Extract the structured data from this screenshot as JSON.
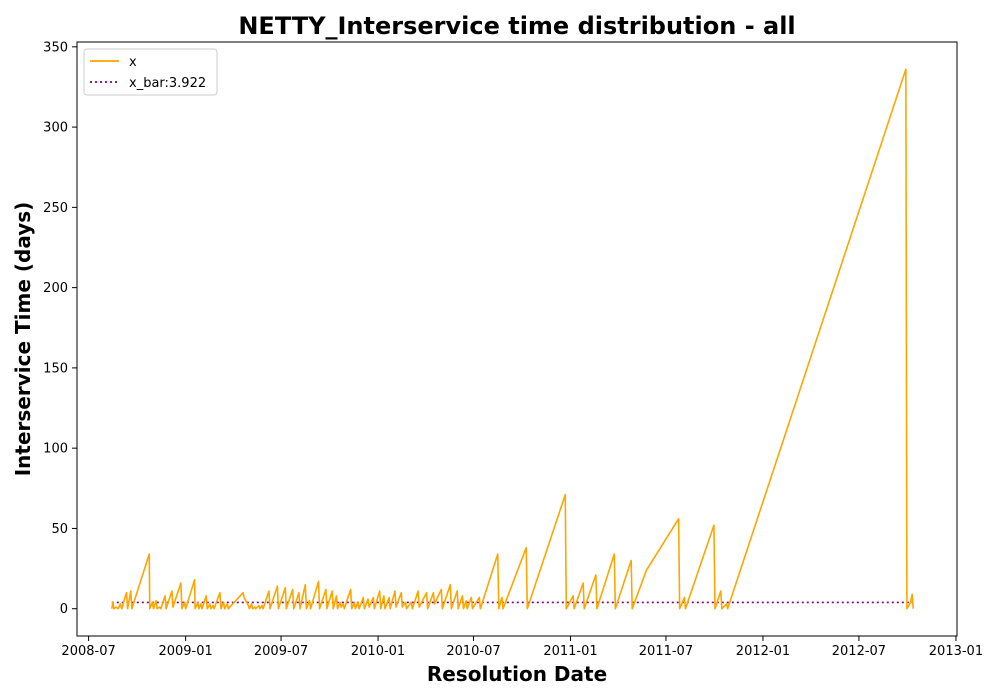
{
  "chart_data": {
    "type": "line",
    "title": "NETTY_Interservice time distribution - all",
    "xlabel": "Resolution Date",
    "ylabel": "Interservice Time (days)",
    "x_axis_type": "date",
    "xlim": [
      "2008-06-09",
      "2013-01-03"
    ],
    "ylim": [
      -17,
      353
    ],
    "x_ticks": [
      "2008-07",
      "2009-01",
      "2009-07",
      "2010-01",
      "2010-07",
      "2011-01",
      "2011-07",
      "2012-01",
      "2012-07",
      "2013-01"
    ],
    "y_ticks": [
      0,
      50,
      100,
      150,
      200,
      250,
      300,
      350
    ],
    "grid": false,
    "legend_position": "upper-left",
    "colors": {
      "x": "#ffa500",
      "x_bar": "#800080"
    },
    "series": [
      {
        "name": "x",
        "style": "solid",
        "points": [
          [
            "2008-08-14",
            0
          ],
          [
            "2008-08-16",
            4
          ],
          [
            "2008-08-18",
            0
          ],
          [
            "2008-08-22",
            1
          ],
          [
            "2008-08-26",
            0
          ],
          [
            "2008-08-30",
            3
          ],
          [
            "2008-09-02",
            0
          ],
          [
            "2008-09-07",
            6
          ],
          [
            "2008-09-11",
            10
          ],
          [
            "2008-09-13",
            0
          ],
          [
            "2008-09-19",
            11
          ],
          [
            "2008-09-21",
            0
          ],
          [
            "2008-10-24",
            34
          ],
          [
            "2008-10-25",
            0
          ],
          [
            "2008-10-30",
            4
          ],
          [
            "2008-11-01",
            0
          ],
          [
            "2008-11-06",
            5
          ],
          [
            "2008-11-08",
            0
          ],
          [
            "2008-11-13",
            1
          ],
          [
            "2008-11-15",
            0
          ],
          [
            "2008-11-23",
            8
          ],
          [
            "2008-11-25",
            0
          ],
          [
            "2008-12-06",
            11
          ],
          [
            "2008-12-08",
            1
          ],
          [
            "2008-12-23",
            16
          ],
          [
            "2008-12-25",
            0
          ],
          [
            "2008-12-30",
            4
          ],
          [
            "2009-01-01",
            0
          ],
          [
            "2009-01-18",
            18
          ],
          [
            "2009-01-19",
            0
          ],
          [
            "2009-01-24",
            4
          ],
          [
            "2009-01-26",
            0
          ],
          [
            "2009-01-30",
            3
          ],
          [
            "2009-02-01",
            0
          ],
          [
            "2009-02-09",
            8
          ],
          [
            "2009-02-11",
            0
          ],
          [
            "2009-02-16",
            3
          ],
          [
            "2009-02-18",
            0
          ],
          [
            "2009-02-22",
            2
          ],
          [
            "2009-02-24",
            0
          ],
          [
            "2009-03-07",
            10
          ],
          [
            "2009-03-09",
            0
          ],
          [
            "2009-03-14",
            4
          ],
          [
            "2009-03-16",
            0
          ],
          [
            "2009-03-21",
            3
          ],
          [
            "2009-03-23",
            0
          ],
          [
            "2009-04-20",
            10
          ],
          [
            "2009-04-22",
            7
          ],
          [
            "2009-04-30",
            2
          ],
          [
            "2009-05-02",
            0
          ],
          [
            "2009-05-06",
            3
          ],
          [
            "2009-05-08",
            0
          ],
          [
            "2009-05-12",
            1
          ],
          [
            "2009-05-14",
            0
          ],
          [
            "2009-05-20",
            2
          ],
          [
            "2009-05-22",
            0
          ],
          [
            "2009-05-26",
            2
          ],
          [
            "2009-05-28",
            0
          ],
          [
            "2009-06-08",
            11
          ],
          [
            "2009-06-10",
            0
          ],
          [
            "2009-06-24",
            14
          ],
          [
            "2009-06-26",
            0
          ],
          [
            "2009-07-09",
            13
          ],
          [
            "2009-07-11",
            0
          ],
          [
            "2009-07-23",
            12
          ],
          [
            "2009-07-25",
            0
          ],
          [
            "2009-08-04",
            10
          ],
          [
            "2009-08-06",
            0
          ],
          [
            "2009-08-16",
            15
          ],
          [
            "2009-08-18",
            0
          ],
          [
            "2009-08-24",
            5
          ],
          [
            "2009-08-26",
            0
          ],
          [
            "2009-09-10",
            17
          ],
          [
            "2009-09-12",
            0
          ],
          [
            "2009-09-24",
            12
          ],
          [
            "2009-09-26",
            0
          ],
          [
            "2009-10-06",
            11
          ],
          [
            "2009-10-08",
            0
          ],
          [
            "2009-10-14",
            8
          ],
          [
            "2009-10-16",
            0
          ],
          [
            "2009-10-21",
            4
          ],
          [
            "2009-10-23",
            1
          ],
          [
            "2009-10-27",
            3
          ],
          [
            "2009-10-29",
            0
          ],
          [
            "2009-11-10",
            12
          ],
          [
            "2009-11-12",
            0
          ],
          [
            "2009-11-17",
            4
          ],
          [
            "2009-11-19",
            0
          ],
          [
            "2009-11-24",
            4
          ],
          [
            "2009-11-26",
            0
          ],
          [
            "2009-12-04",
            7
          ],
          [
            "2009-12-06",
            0
          ],
          [
            "2009-12-13",
            6
          ],
          [
            "2009-12-15",
            1
          ],
          [
            "2009-12-23",
            7
          ],
          [
            "2009-12-25",
            0
          ],
          [
            "2010-01-04",
            11
          ],
          [
            "2010-01-06",
            0
          ],
          [
            "2010-01-12",
            8
          ],
          [
            "2010-01-14",
            0
          ],
          [
            "2010-01-22",
            7
          ],
          [
            "2010-01-24",
            0
          ],
          [
            "2010-02-02",
            11
          ],
          [
            "2010-02-04",
            1
          ],
          [
            "2010-02-14",
            10
          ],
          [
            "2010-02-16",
            1
          ],
          [
            "2010-02-22",
            4
          ],
          [
            "2010-02-24",
            0
          ],
          [
            "2010-03-05",
            4
          ],
          [
            "2010-03-07",
            0
          ],
          [
            "2010-03-18",
            11
          ],
          [
            "2010-03-20",
            1
          ],
          [
            "2010-04-03",
            10
          ],
          [
            "2010-04-05",
            0
          ],
          [
            "2010-04-16",
            10
          ],
          [
            "2010-04-18",
            3
          ],
          [
            "2010-05-01",
            12
          ],
          [
            "2010-05-03",
            0
          ],
          [
            "2010-05-18",
            15
          ],
          [
            "2010-05-20",
            0
          ],
          [
            "2010-05-31",
            11
          ],
          [
            "2010-06-02",
            0
          ],
          [
            "2010-06-10",
            8
          ],
          [
            "2010-06-12",
            0
          ],
          [
            "2010-06-17",
            5
          ],
          [
            "2010-06-19",
            0
          ],
          [
            "2010-06-27",
            7
          ],
          [
            "2010-06-29",
            0
          ],
          [
            "2010-07-12",
            7
          ],
          [
            "2010-07-14",
            0
          ],
          [
            "2010-08-16",
            34
          ],
          [
            "2010-08-18",
            0
          ],
          [
            "2010-08-24",
            7
          ],
          [
            "2010-08-26",
            0
          ],
          [
            "2010-10-09",
            38
          ],
          [
            "2010-10-11",
            0
          ],
          [
            "2010-12-22",
            71
          ],
          [
            "2010-12-24",
            0
          ],
          [
            "2011-01-06",
            8
          ],
          [
            "2011-01-08",
            0
          ],
          [
            "2011-01-25",
            16
          ],
          [
            "2011-01-27",
            0
          ],
          [
            "2011-02-18",
            21
          ],
          [
            "2011-02-20",
            0
          ],
          [
            "2011-03-25",
            34
          ],
          [
            "2011-03-27",
            0
          ],
          [
            "2011-04-26",
            30
          ],
          [
            "2011-04-28",
            0
          ],
          [
            "2011-05-25",
            24
          ],
          [
            "2011-07-25",
            56
          ],
          [
            "2011-07-27",
            0
          ],
          [
            "2011-08-05",
            7
          ],
          [
            "2011-08-07",
            0
          ],
          [
            "2011-09-30",
            52
          ],
          [
            "2011-10-02",
            0
          ],
          [
            "2011-10-13",
            11
          ],
          [
            "2011-10-15",
            0
          ],
          [
            "2011-10-24",
            3
          ],
          [
            "2011-10-26",
            0
          ],
          [
            "2012-09-28",
            336
          ],
          [
            "2012-09-30",
            0
          ],
          [
            "2012-10-07",
            4
          ],
          [
            "2012-10-10",
            9
          ],
          [
            "2012-10-12",
            0
          ]
        ]
      },
      {
        "name": "x_bar:3.922",
        "style": "dotted",
        "points": [
          [
            "2008-08-14",
            3.922
          ],
          [
            "2012-10-12",
            3.922
          ]
        ]
      }
    ]
  }
}
